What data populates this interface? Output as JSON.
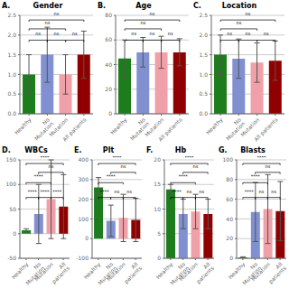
{
  "chart_data": [
    {
      "type": "bar",
      "label": "A.",
      "title": "Gender",
      "categories": [
        "Healthy",
        "No Mutation",
        "Mutation",
        "All patients"
      ],
      "values": [
        1.0,
        1.5,
        1.0,
        1.5
      ],
      "errors": [
        0.5,
        0.7,
        0.5,
        0.6
      ],
      "colors": [
        "#1d7d1d",
        "#8090d0",
        "#f0a0a8",
        "#900000"
      ],
      "ylim": [
        0,
        2.5
      ],
      "yticks": [
        {
          "value": 0,
          "label": "0.0"
        },
        0.5,
        {
          "value": 1,
          "label": "1.0"
        },
        1.5,
        {
          "value": 2,
          "label": "2.0"
        },
        2.5
      ],
      "grid": true,
      "annotations": [
        {
          "text": "ns",
          "from": 0,
          "to": 1
        },
        {
          "text": "ns",
          "from": 1,
          "to": 2
        },
        {
          "text": "ns",
          "from": 2,
          "to": 3
        },
        {
          "text": "ns",
          "from": 0,
          "to": 2
        },
        {
          "text": "ns",
          "from": 0,
          "to": 3
        }
      ]
    },
    {
      "type": "bar",
      "label": "B.",
      "title": "Age",
      "categories": [
        "Healthy",
        "No Mutation",
        "Mutation",
        "All patients"
      ],
      "values": [
        45,
        50,
        50,
        50
      ],
      "errors": [
        15,
        12,
        13,
        11
      ],
      "colors": [
        "#1d7d1d",
        "#8090d0",
        "#f0a0a8",
        "#900000"
      ],
      "ylim": [
        0,
        80
      ],
      "yticks": [
        0,
        20,
        40,
        60,
        80
      ],
      "grid": true,
      "annotations": [
        {
          "text": "ns",
          "from": 0,
          "to": 1
        },
        {
          "text": "ns",
          "from": 1,
          "to": 2
        },
        {
          "text": "ns",
          "from": 2,
          "to": 3
        },
        {
          "text": "ns",
          "from": 0,
          "to": 2
        },
        {
          "text": "ns",
          "from": 0,
          "to": 3
        }
      ]
    },
    {
      "type": "bar",
      "label": "C.",
      "title": "Location",
      "categories": [
        "Healthy",
        "No Mutation",
        "Mutation",
        "All patients"
      ],
      "values": [
        1.5,
        1.4,
        1.3,
        1.35
      ],
      "errors": [
        0.5,
        0.5,
        0.5,
        0.5
      ],
      "colors": [
        "#1d7d1d",
        "#8090d0",
        "#f0a0a8",
        "#900000"
      ],
      "ylim": [
        0,
        2.5
      ],
      "yticks": [
        {
          "value": 0,
          "label": "0.0"
        },
        0.5,
        {
          "value": 1,
          "label": "1.0"
        },
        1.5,
        {
          "value": 2,
          "label": "2.0"
        },
        2.5
      ],
      "grid": true,
      "annotations": [
        {
          "text": "ns",
          "from": 0,
          "to": 1
        },
        {
          "text": "ns",
          "from": 1,
          "to": 2
        },
        {
          "text": "ns",
          "from": 2,
          "to": 3
        },
        {
          "text": "ns",
          "from": 0,
          "to": 2
        },
        {
          "text": "ns",
          "from": 0,
          "to": 3
        }
      ]
    },
    {
      "type": "bar",
      "label": "D.",
      "title": "WBCs",
      "categories": [
        "Healthy",
        "No Mutation",
        "Mutation",
        "All patients"
      ],
      "values": [
        7,
        40,
        70,
        55
      ],
      "errors": [
        3,
        60,
        80,
        65
      ],
      "colors": [
        "#1d7d1d",
        "#8090d0",
        "#f0a0a8",
        "#900000"
      ],
      "ylim": [
        -50,
        150
      ],
      "yticks": [
        -50,
        0,
        50,
        100,
        150
      ],
      "grid": true,
      "annotations": [
        {
          "text": "****",
          "from": 0,
          "to": 1
        },
        {
          "text": "****",
          "from": 1,
          "to": 2
        },
        {
          "text": "****",
          "from": 2,
          "to": 3
        },
        {
          "text": "****",
          "from": 0,
          "to": 2
        },
        {
          "text": "ns",
          "from": 1,
          "to": 3
        },
        {
          "text": "****",
          "from": 0,
          "to": 3
        }
      ]
    },
    {
      "type": "bar",
      "label": "E.",
      "title": "Plt",
      "categories": [
        "Healthy",
        "No Mutation",
        "Mutation",
        "All patients"
      ],
      "values": [
        260,
        90,
        105,
        95
      ],
      "errors": [
        50,
        80,
        120,
        110
      ],
      "colors": [
        "#1d7d1d",
        "#8090d0",
        "#f0a0a8",
        "#900000"
      ],
      "ylim": [
        -100,
        400
      ],
      "yticks": [
        -100,
        0,
        100,
        200,
        300,
        400
      ],
      "grid": true,
      "annotations": [
        {
          "text": "****",
          "from": 0,
          "to": 1
        },
        {
          "text": "ns",
          "from": 1,
          "to": 2
        },
        {
          "text": "ns",
          "from": 2,
          "to": 3
        },
        {
          "text": "****",
          "from": 0,
          "to": 2
        },
        {
          "text": "ns",
          "from": 1,
          "to": 3
        },
        {
          "text": "****",
          "from": 0,
          "to": 3
        }
      ]
    },
    {
      "type": "bar",
      "label": "F.",
      "title": "Hb",
      "categories": [
        "Healthy",
        "No Mutation",
        "Mutation",
        "All patients"
      ],
      "values": [
        14,
        9,
        9.5,
        9
      ],
      "errors": [
        1,
        3,
        3.5,
        3
      ],
      "colors": [
        "#1d7d1d",
        "#8090d0",
        "#f0a0a8",
        "#900000"
      ],
      "ylim": [
        0,
        20
      ],
      "yticks": [
        0,
        5,
        10,
        15,
        20
      ],
      "grid": true,
      "annotations": [
        {
          "text": "****",
          "from": 0,
          "to": 1
        },
        {
          "text": "ns",
          "from": 1,
          "to": 2
        },
        {
          "text": "ns",
          "from": 2,
          "to": 3
        },
        {
          "text": "****",
          "from": 0,
          "to": 2
        },
        {
          "text": "ns",
          "from": 1,
          "to": 3
        },
        {
          "text": "****",
          "from": 0,
          "to": 3
        }
      ]
    },
    {
      "type": "bar",
      "label": "G.",
      "title": "Blasts",
      "categories": [
        "Healthy",
        "No Mutation",
        "Mutation",
        "All patients"
      ],
      "values": [
        1,
        47,
        50,
        48
      ],
      "errors": [
        0.5,
        30,
        35,
        30
      ],
      "colors": [
        "#1d7d1d",
        "#8090d0",
        "#f0a0a8",
        "#900000"
      ],
      "ylim": [
        0,
        100
      ],
      "yticks": [
        0,
        20,
        40,
        60,
        80,
        100
      ],
      "grid": true,
      "annotations": [
        {
          "text": "****",
          "from": 0,
          "to": 1
        },
        {
          "text": "ns",
          "from": 1,
          "to": 2
        },
        {
          "text": "ns",
          "from": 2,
          "to": 3
        },
        {
          "text": "****",
          "from": 0,
          "to": 2
        },
        {
          "text": "ns",
          "from": 1,
          "to": 3
        },
        {
          "text": "****",
          "from": 0,
          "to": 3
        }
      ]
    }
  ]
}
